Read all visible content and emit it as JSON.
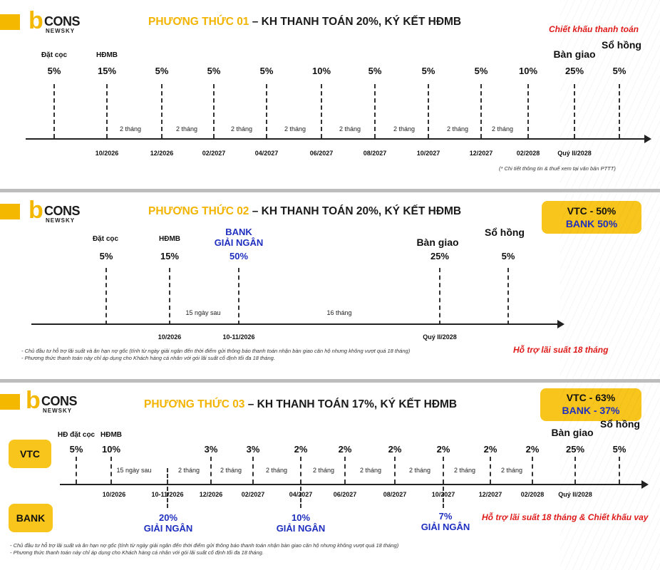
{
  "brand": {
    "logo_b": "b",
    "logo_cons": "CONS",
    "logo_newsky": "NEWSKY"
  },
  "plan1": {
    "title_highlight": "PHƯƠNG THỨC 01",
    "title_rest": " – KH THANH TOÁN 20%, KÝ KẾT HĐMB",
    "discount_note": "Chiết khấu thanh toán",
    "footnote": "(* Chi tiết thông tin & thuế xem tại văn bản PTTT)",
    "milestones": [
      {
        "label": "Đặt cọc",
        "pct": "5%"
      },
      {
        "label": "HĐMB",
        "pct": "15%"
      },
      {
        "label": "",
        "pct": "5%"
      },
      {
        "label": "",
        "pct": "5%"
      },
      {
        "label": "",
        "pct": "5%"
      },
      {
        "label": "",
        "pct": "10%"
      },
      {
        "label": "",
        "pct": "5%"
      },
      {
        "label": "",
        "pct": "5%"
      },
      {
        "label": "",
        "pct": "5%"
      },
      {
        "label": "",
        "pct": "10%"
      },
      {
        "label": "Bàn giao",
        "pct": "25%"
      },
      {
        "label": "Sổ hồng",
        "pct": "5%"
      }
    ],
    "dates": [
      "10/2026",
      "12/2026",
      "02/2027",
      "04/2027",
      "06/2027",
      "08/2027",
      "10/2027",
      "12/2027",
      "02/2028",
      "Quý II/2028"
    ],
    "gaps": [
      "2 tháng",
      "2 tháng",
      "2 tháng",
      "2 tháng",
      "2 tháng",
      "2 tháng",
      "2 tháng",
      "2 tháng"
    ]
  },
  "plan2": {
    "title_highlight": "PHƯƠNG THỨC 02",
    "title_rest": " – KH THANH TOÁN 20%, KÝ KẾT HĐMB",
    "split_vtc": "VTC - 50%",
    "split_bank": "BANK 50%",
    "milestones": [
      {
        "label": "Đặt cọc",
        "pct": "5%"
      },
      {
        "label": "HĐMB",
        "pct": "15%"
      },
      {
        "label": "Bàn giao",
        "pct": "25%"
      },
      {
        "label": "Sổ hồng",
        "pct": "5%"
      }
    ],
    "bank_line1": "BANK",
    "bank_line2": "GIẢI NGÂN",
    "bank_pct": "50%",
    "dates": [
      "10/2026",
      "10-11/2026",
      "Quý II/2028"
    ],
    "gaps": [
      "15 ngày sau",
      "16 tháng"
    ],
    "support": "Hỗ trợ lãi suất 18 tháng",
    "notes": [
      "- Chủ đầu tư hỗ trợ lãi suất và ân hạn nợ gốc (tính từ ngày giải ngân đến thời điểm gửi thông báo thanh toán nhận bàn giao căn hộ nhưng không vượt quá 18 tháng)",
      "- Phương thức thanh toán này chỉ áp dụng cho Khách hàng cá nhân với gói lãi suất cố định tối đa 18 tháng."
    ]
  },
  "plan3": {
    "title_highlight": "PHƯƠNG THỨC 03",
    "title_rest": " – KH THANH TOÁN 17%, KÝ KẾT HĐMB",
    "split_vtc": "VTC - 63%",
    "split_bank": "BANK - 37%",
    "row_vtc": "VTC",
    "row_bank": "BANK",
    "milestones": [
      {
        "label": "HĐ đặt cọc",
        "pct": "5%"
      },
      {
        "label": "HĐMB",
        "pct": "10%"
      },
      {
        "label": "",
        "pct": "3%"
      },
      {
        "label": "",
        "pct": "3%"
      },
      {
        "label": "",
        "pct": "2%"
      },
      {
        "label": "",
        "pct": "2%"
      },
      {
        "label": "",
        "pct": "2%"
      },
      {
        "label": "",
        "pct": "2%"
      },
      {
        "label": "",
        "pct": "2%"
      },
      {
        "label": "",
        "pct": "2%"
      },
      {
        "label": "Bàn giao",
        "pct": "25%"
      },
      {
        "label": "Sổ hồng",
        "pct": "5%"
      }
    ],
    "dates": [
      "10/2026",
      "10-11/2026",
      "12/2026",
      "02/2027",
      "04/2027",
      "06/2027",
      "08/2027",
      "10/2027",
      "12/2027",
      "02/2028",
      "Quý II/2028"
    ],
    "gaps": [
      "15 ngày sau",
      "2 tháng",
      "2 tháng",
      "2 tháng",
      "2 tháng",
      "2 tháng",
      "2 tháng",
      "2 tháng",
      "2 tháng"
    ],
    "bank_disbursements": [
      {
        "pct": "20%",
        "label": "GIẢI NGÂN"
      },
      {
        "pct": "10%",
        "label": "GIẢI NGÂN"
      },
      {
        "pct": "7%",
        "label": "GIẢI NGÂN"
      }
    ],
    "support": "Hỗ trợ lãi suất 18 tháng & Chiết khấu vay",
    "notes": [
      "- Chủ đầu tư hỗ trợ lãi suất và ân hạn nợ gốc (tính từ ngày giải ngân đến thời điểm gửi thông báo thanh toán nhận bàn giao căn hộ nhưng không vượt quá 18 tháng)",
      "- Phương thức thanh toán này chỉ áp dụng cho Khách hàng cá nhân với gói lãi suất cố định tối đa 18 tháng."
    ]
  }
}
